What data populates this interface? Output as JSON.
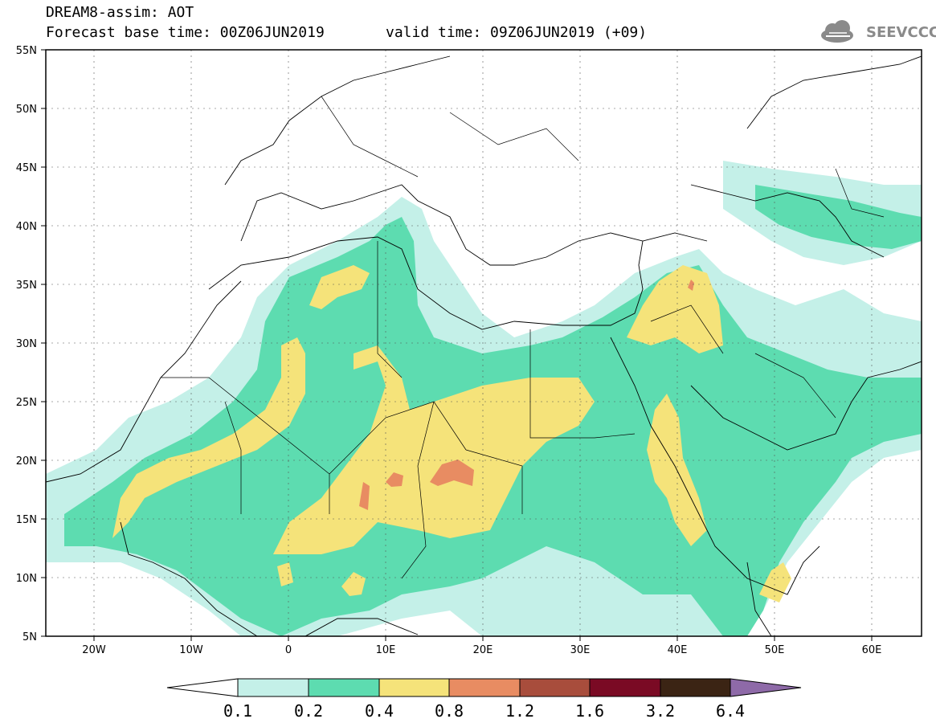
{
  "header": {
    "title": "DREAM8-assim: AOT",
    "base_time": "Forecast base time: 00Z06JUN2019",
    "valid_time": "valid time: 09Z06JUN2019 (+09)",
    "logo_text": "SEEVCCC"
  },
  "map": {
    "lon_range": [
      -25,
      65
    ],
    "lat_range": [
      5,
      55
    ],
    "lon_ticks": [
      "20W",
      "10W",
      "0",
      "10E",
      "20E",
      "30E",
      "40E",
      "50E",
      "60E"
    ],
    "lat_ticks": [
      "55N",
      "50N",
      "45N",
      "40N",
      "35N",
      "30N",
      "25N",
      "20N",
      "15N",
      "10N",
      "5N"
    ]
  },
  "colorbar": {
    "labels": [
      "0.1",
      "0.2",
      "0.4",
      "0.8",
      "1.2",
      "1.6",
      "3.2",
      "6.4"
    ],
    "colors": [
      "#ffffff",
      "#c4f0e8",
      "#5ddcb0",
      "#f5e37a",
      "#e88c62",
      "#a84d3c",
      "#7a0a24",
      "#3b2414",
      "#8e6aa8"
    ]
  }
}
